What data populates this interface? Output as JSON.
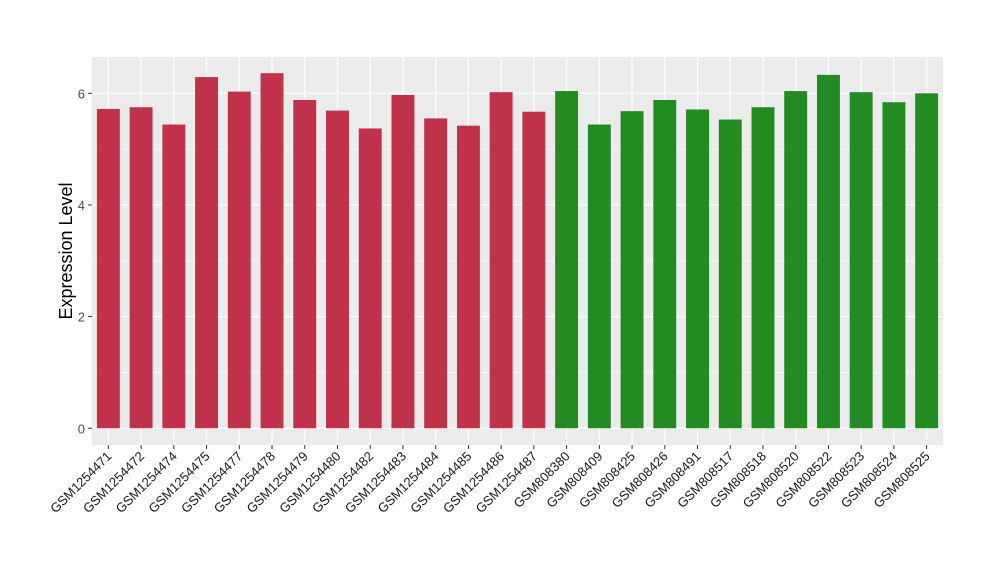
{
  "chart_data": {
    "type": "bar",
    "ylabel": "Expression Level",
    "xlabel": "",
    "ylim": [
      -0.3,
      6.65
    ],
    "yticks": [
      0,
      2,
      4,
      6
    ],
    "grid": true,
    "categories": [
      "GSM1254471",
      "GSM1254472",
      "GSM1254474",
      "GSM1254475",
      "GSM1254477",
      "GSM1254478",
      "GSM1254479",
      "GSM1254480",
      "GSM1254482",
      "GSM1254483",
      "GSM1254484",
      "GSM1254485",
      "GSM1254486",
      "GSM1254487",
      "GSM808380",
      "GSM808409",
      "GSM808425",
      "GSM808426",
      "GSM808491",
      "GSM808517",
      "GSM808518",
      "GSM808520",
      "GSM808522",
      "GSM808523",
      "GSM808524",
      "GSM808525"
    ],
    "values": [
      5.72,
      5.75,
      5.44,
      6.29,
      6.03,
      6.36,
      5.88,
      5.69,
      5.37,
      5.97,
      5.55,
      5.42,
      6.02,
      5.67,
      6.04,
      5.44,
      5.68,
      5.88,
      5.71,
      5.53,
      5.75,
      6.04,
      6.33,
      6.02,
      5.84,
      6.0
    ],
    "groups": [
      0,
      0,
      0,
      0,
      0,
      0,
      0,
      0,
      0,
      0,
      0,
      0,
      0,
      0,
      1,
      1,
      1,
      1,
      1,
      1,
      1,
      1,
      1,
      1,
      1,
      1
    ],
    "colors": [
      "#C0314A",
      "#228B22"
    ],
    "panel_background": "#EBEBEB",
    "grid_color": "#FFFFFF"
  }
}
